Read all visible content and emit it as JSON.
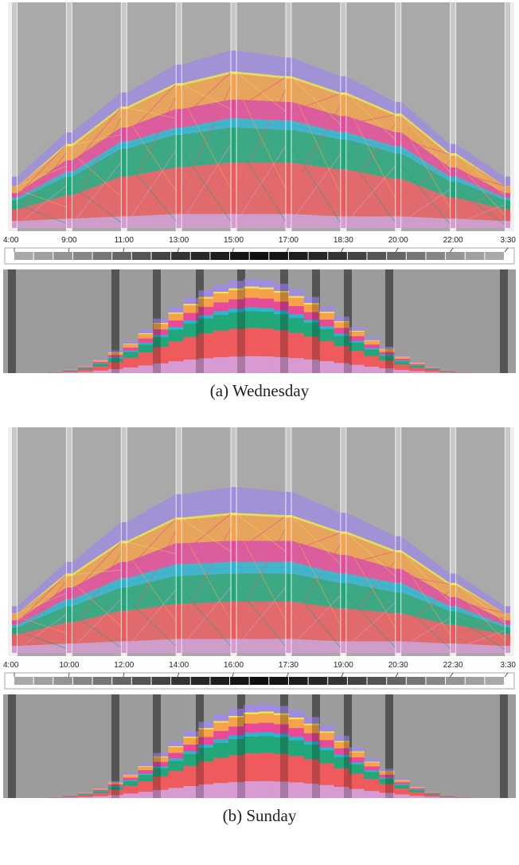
{
  "colors": {
    "background_column": "#a9a9a9",
    "axis_bar": "#8c8c8c",
    "strips": [
      "#d79ad2",
      "#ef5a5c",
      "#22a77a",
      "#29b6d2",
      "#e84a9a",
      "#f6a24a",
      "#f3e84a",
      "#9f8ce0"
    ]
  },
  "panels": [
    {
      "caption": "(a)  Wednesday",
      "chart_data": {
        "type": "area",
        "x_ticks": [
          "4:00",
          "9:00",
          "11:00",
          "13:00",
          "15:00",
          "17:00",
          "18:30",
          "20:00",
          "22:00",
          "3:30"
        ],
        "band_order": [
          "purple",
          "red",
          "green",
          "teal",
          "pink",
          "orange",
          "yellow",
          "lavender"
        ],
        "relative_band_heights": [
          [
            0.03,
            0.05,
            0.04,
            0.01,
            0.02,
            0.03,
            0.0,
            0.04
          ],
          [
            0.04,
            0.1,
            0.08,
            0.02,
            0.05,
            0.06,
            0.01,
            0.05
          ],
          [
            0.05,
            0.17,
            0.12,
            0.03,
            0.06,
            0.08,
            0.01,
            0.06
          ],
          [
            0.06,
            0.2,
            0.14,
            0.03,
            0.08,
            0.1,
            0.01,
            0.08
          ],
          [
            0.06,
            0.22,
            0.15,
            0.04,
            0.08,
            0.11,
            0.01,
            0.09
          ],
          [
            0.06,
            0.22,
            0.14,
            0.04,
            0.08,
            0.1,
            0.01,
            0.08
          ],
          [
            0.05,
            0.2,
            0.13,
            0.03,
            0.07,
            0.09,
            0.01,
            0.07
          ],
          [
            0.05,
            0.16,
            0.11,
            0.03,
            0.06,
            0.07,
            0.01,
            0.05
          ],
          [
            0.04,
            0.09,
            0.07,
            0.02,
            0.04,
            0.05,
            0.01,
            0.04
          ],
          [
            0.03,
            0.05,
            0.04,
            0.01,
            0.02,
            0.03,
            0.0,
            0.04
          ]
        ],
        "heatmap_intensity": [
          0.25,
          0.3,
          0.35,
          0.42,
          0.5,
          0.58,
          0.66,
          0.74,
          0.82,
          0.88,
          0.93,
          0.97,
          1.0,
          0.97,
          0.93,
          0.88,
          0.82,
          0.74,
          0.66,
          0.58,
          0.5,
          0.42,
          0.35,
          0.3,
          0.25
        ],
        "density_profile": [
          0.01,
          0.04,
          0.08,
          0.15,
          0.24,
          0.34,
          0.46,
          0.58,
          0.7,
          0.8,
          0.88,
          0.94,
          0.98,
          1.0,
          0.99,
          0.95,
          0.89,
          0.81,
          0.71,
          0.6,
          0.49,
          0.38,
          0.28,
          0.19,
          0.12,
          0.07,
          0.03,
          0.01
        ]
      }
    },
    {
      "caption": "(b)  Sunday",
      "chart_data": {
        "type": "area",
        "x_ticks": [
          "4:00",
          "10:00",
          "12:00",
          "14:00",
          "16:00",
          "17:30",
          "19:00",
          "20:30",
          "22:30",
          "3:30"
        ],
        "band_order": [
          "purple",
          "red",
          "green",
          "teal",
          "pink",
          "orange",
          "yellow",
          "lavender"
        ],
        "relative_band_heights": [
          [
            0.03,
            0.05,
            0.03,
            0.01,
            0.02,
            0.03,
            0.0,
            0.03
          ],
          [
            0.04,
            0.09,
            0.07,
            0.03,
            0.05,
            0.05,
            0.01,
            0.05
          ],
          [
            0.05,
            0.13,
            0.1,
            0.04,
            0.07,
            0.08,
            0.01,
            0.08
          ],
          [
            0.06,
            0.15,
            0.12,
            0.05,
            0.09,
            0.1,
            0.01,
            0.1
          ],
          [
            0.06,
            0.16,
            0.12,
            0.05,
            0.09,
            0.11,
            0.01,
            0.11
          ],
          [
            0.06,
            0.16,
            0.12,
            0.05,
            0.09,
            0.1,
            0.01,
            0.1
          ],
          [
            0.05,
            0.14,
            0.11,
            0.04,
            0.08,
            0.09,
            0.01,
            0.08
          ],
          [
            0.05,
            0.12,
            0.09,
            0.04,
            0.06,
            0.07,
            0.01,
            0.06
          ],
          [
            0.04,
            0.08,
            0.06,
            0.02,
            0.04,
            0.05,
            0.01,
            0.04
          ],
          [
            0.03,
            0.05,
            0.03,
            0.01,
            0.02,
            0.03,
            0.0,
            0.03
          ]
        ],
        "heatmap_intensity": [
          0.25,
          0.3,
          0.35,
          0.42,
          0.5,
          0.58,
          0.66,
          0.74,
          0.82,
          0.88,
          0.93,
          0.97,
          1.0,
          0.97,
          0.93,
          0.88,
          0.82,
          0.74,
          0.66,
          0.58,
          0.5,
          0.42,
          0.35,
          0.3,
          0.25
        ],
        "density_profile": [
          0.01,
          0.03,
          0.06,
          0.11,
          0.18,
          0.27,
          0.37,
          0.48,
          0.6,
          0.71,
          0.81,
          0.89,
          0.95,
          0.99,
          1.0,
          0.98,
          0.93,
          0.86,
          0.77,
          0.66,
          0.54,
          0.42,
          0.31,
          0.21,
          0.13,
          0.07,
          0.03,
          0.01
        ]
      }
    }
  ]
}
